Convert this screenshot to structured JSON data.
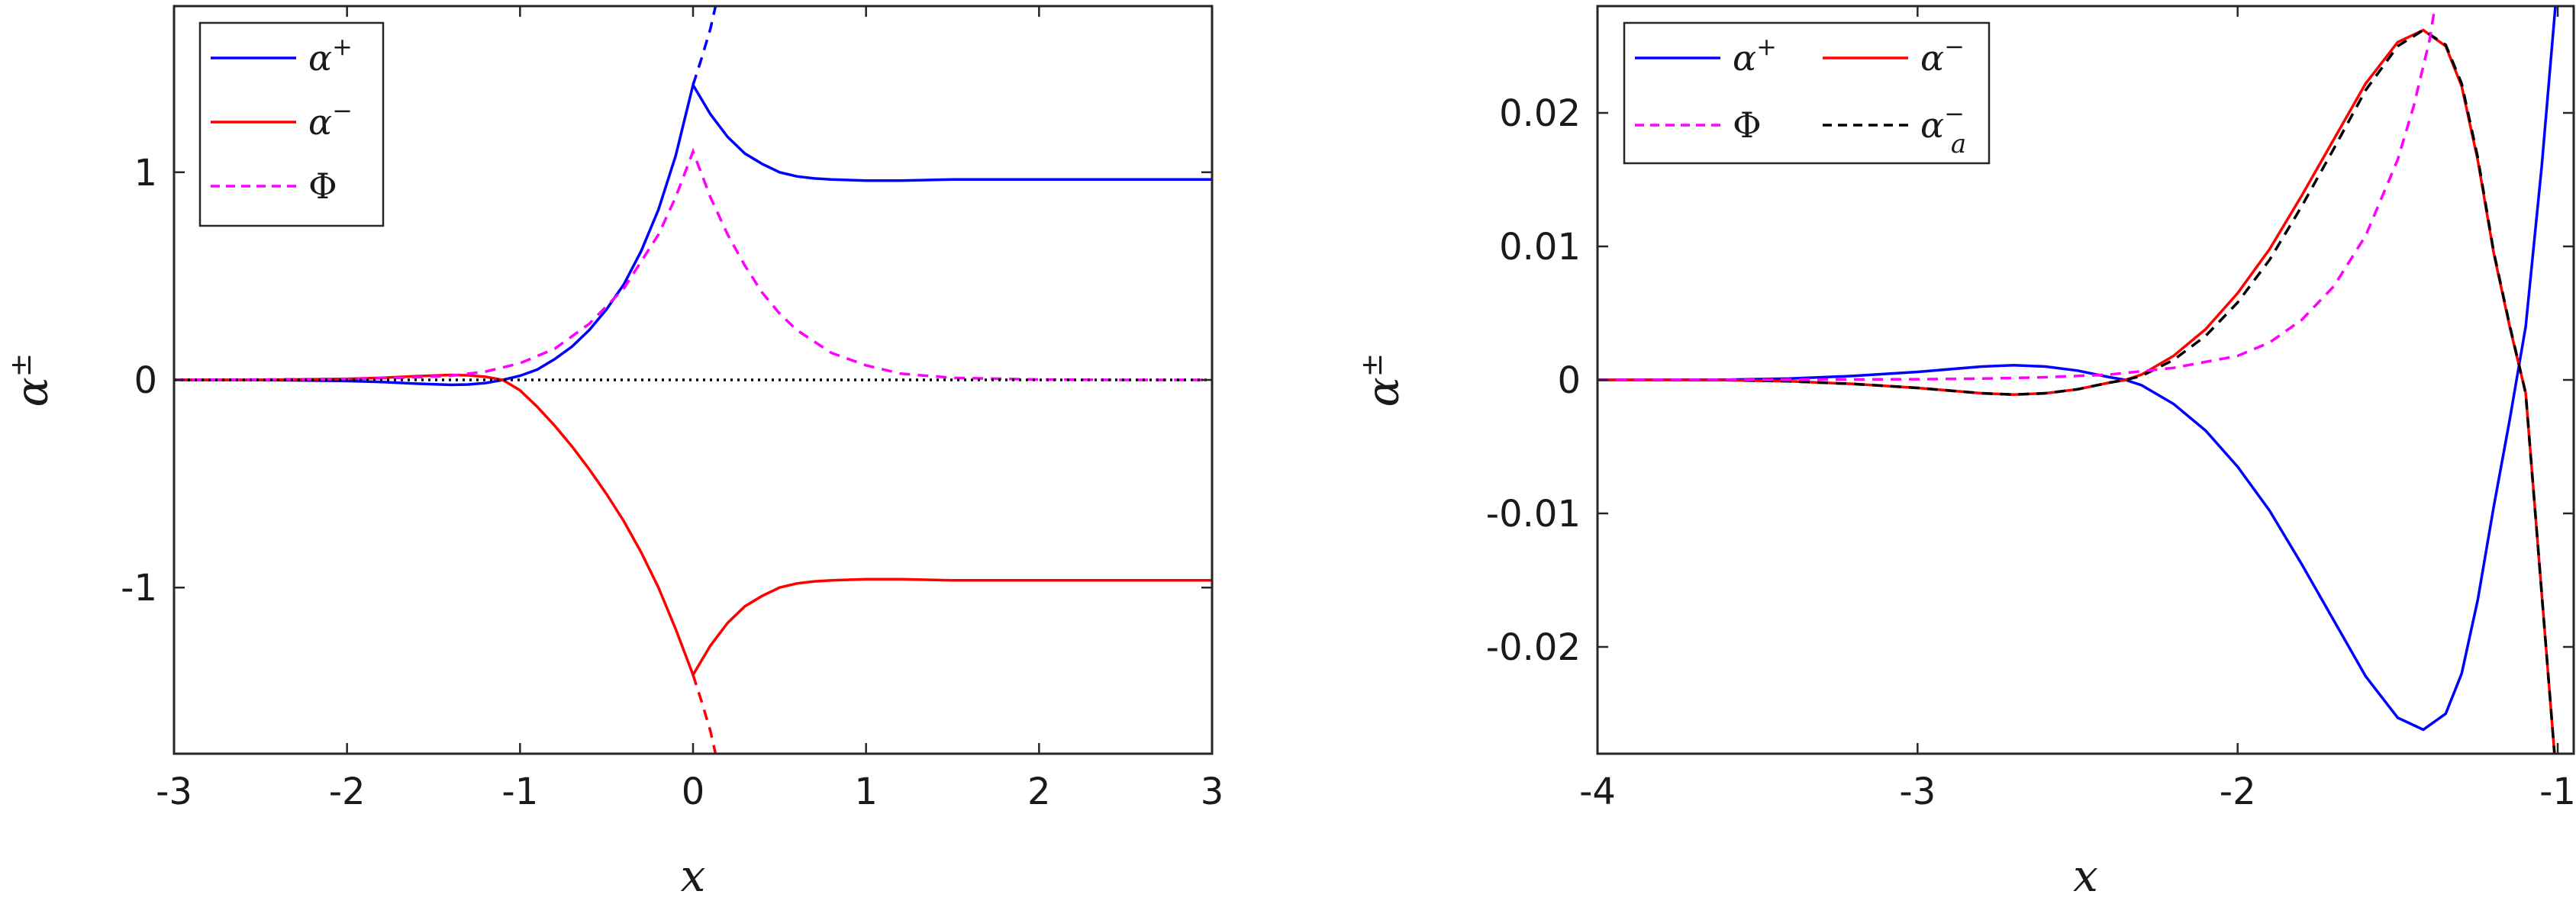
{
  "chart_data": [
    {
      "type": "line",
      "xlabel": "x",
      "ylabel": "α±",
      "xlim": [
        -3,
        3
      ],
      "ylim": [
        -1.8,
        1.8
      ],
      "xticks": [
        -3,
        -2,
        -1,
        0,
        1,
        2,
        3
      ],
      "xtick_labels": [
        "-3",
        "-2",
        "-1",
        "0",
        "1",
        "2",
        "3"
      ],
      "yticks": [
        -1,
        0,
        1
      ],
      "ytick_labels": [
        "-1",
        "0",
        "1"
      ],
      "legend": {
        "position": "top-left",
        "columns": 1,
        "entries": [
          "α+",
          "α−",
          "Φ"
        ]
      },
      "grid": false,
      "series": [
        {
          "name": "α+",
          "color": "#0000ff",
          "style": "solid",
          "x": [
            -3,
            -2.5,
            -2,
            -1.8,
            -1.6,
            -1.4,
            -1.3,
            -1.2,
            -1.1,
            -1.0,
            -0.9,
            -0.8,
            -0.7,
            -0.6,
            -0.5,
            -0.4,
            -0.3,
            -0.2,
            -0.1,
            0.0,
            0.1,
            0.2,
            0.3,
            0.4,
            0.5,
            0.6,
            0.7,
            0.8,
            1.0,
            1.2,
            1.5,
            2.0,
            2.5,
            3.0
          ],
          "y": [
            0,
            0,
            -0.005,
            -0.01,
            -0.018,
            -0.024,
            -0.022,
            -0.015,
            0.0,
            0.02,
            0.05,
            0.1,
            0.16,
            0.24,
            0.34,
            0.46,
            0.62,
            0.82,
            1.08,
            1.42,
            1.28,
            1.17,
            1.09,
            1.04,
            1.0,
            0.98,
            0.97,
            0.965,
            0.96,
            0.96,
            0.965,
            0.965,
            0.965,
            0.965
          ]
        },
        {
          "name": "α−",
          "color": "#ff0000",
          "style": "solid",
          "x": [
            -3,
            -2.5,
            -2,
            -1.8,
            -1.6,
            -1.4,
            -1.3,
            -1.2,
            -1.1,
            -1.0,
            -0.9,
            -0.8,
            -0.7,
            -0.6,
            -0.5,
            -0.4,
            -0.3,
            -0.2,
            -0.1,
            0.0,
            0.1,
            0.2,
            0.3,
            0.4,
            0.5,
            0.6,
            0.7,
            0.8,
            1.0,
            1.2,
            1.5,
            2.0,
            2.5,
            3.0
          ],
          "y": [
            0,
            0,
            0.005,
            0.01,
            0.018,
            0.024,
            0.022,
            0.015,
            0.0,
            -0.05,
            -0.13,
            -0.22,
            -0.32,
            -0.43,
            -0.55,
            -0.68,
            -0.83,
            -1.0,
            -1.2,
            -1.42,
            -1.28,
            -1.17,
            -1.09,
            -1.04,
            -1.0,
            -0.98,
            -0.97,
            -0.965,
            -0.96,
            -0.96,
            -0.965,
            -0.965,
            -0.965,
            -0.965
          ]
        },
        {
          "name": "Φ",
          "color": "#ff00ff",
          "style": "dashed",
          "x": [
            -3,
            -2.5,
            -2,
            -1.8,
            -1.6,
            -1.4,
            -1.2,
            -1.0,
            -0.8,
            -0.6,
            -0.4,
            -0.2,
            -0.1,
            0.0,
            0.1,
            0.2,
            0.3,
            0.4,
            0.5,
            0.6,
            0.8,
            1.0,
            1.2,
            1.5,
            2.0,
            2.5,
            3.0
          ],
          "y": [
            0,
            0.002,
            0.005,
            0.008,
            0.013,
            0.02,
            0.04,
            0.08,
            0.15,
            0.27,
            0.44,
            0.7,
            0.88,
            1.1,
            0.88,
            0.7,
            0.55,
            0.42,
            0.32,
            0.24,
            0.13,
            0.07,
            0.03,
            0.01,
            0.002,
            0.0,
            0.0
          ]
        },
        {
          "color": "#0000ff",
          "style": "dashed",
          "x": [
            0.0,
            0.05,
            0.1,
            0.13
          ],
          "y": [
            1.42,
            1.55,
            1.69,
            1.8
          ]
        },
        {
          "color": "#ff0000",
          "style": "dashed",
          "x": [
            0.0,
            0.05,
            0.1,
            0.13
          ],
          "y": [
            -1.42,
            -1.55,
            -1.69,
            -1.8
          ]
        },
        {
          "color": "#000000",
          "style": "dotted",
          "x": [
            -3,
            3
          ],
          "y": [
            0,
            0
          ]
        }
      ]
    },
    {
      "type": "line",
      "xlabel": "x",
      "ylabel": "α±",
      "xlim": [
        -4,
        -0.95
      ],
      "ylim": [
        -0.028,
        0.028
      ],
      "xticks": [
        -4,
        -3,
        -2,
        -1
      ],
      "xtick_labels": [
        "-4",
        "-3",
        "-2",
        "-1"
      ],
      "yticks": [
        -0.02,
        -0.01,
        0,
        0.01,
        0.02
      ],
      "ytick_labels": [
        "-0.02",
        "-0.01",
        "0",
        "0.01",
        "0.02"
      ],
      "legend": {
        "position": "top-left",
        "columns": 2,
        "entries": [
          "α+",
          "α−",
          "Φ",
          "α−a"
        ]
      },
      "grid": false,
      "series": [
        {
          "name": "α+",
          "color": "#0000ff",
          "style": "solid",
          "x": [
            -4,
            -3.6,
            -3.4,
            -3.2,
            -3.0,
            -2.8,
            -2.7,
            -2.6,
            -2.5,
            -2.4,
            -2.35,
            -2.3,
            -2.2,
            -2.1,
            -2.0,
            -1.9,
            -1.8,
            -1.7,
            -1.6,
            -1.5,
            -1.42,
            -1.35,
            -1.3,
            -1.25,
            -1.2,
            -1.15,
            -1.1,
            -1.05,
            -1.0
          ],
          "y": [
            0,
            2e-05,
            0.0001,
            0.0003,
            0.0006,
            0.001,
            0.0011,
            0.001,
            0.0007,
            0.0002,
            0.0,
            -0.0004,
            -0.0018,
            -0.0038,
            -0.0065,
            -0.0098,
            -0.0138,
            -0.018,
            -0.0222,
            -0.0253,
            -0.0262,
            -0.025,
            -0.022,
            -0.0165,
            -0.0095,
            -0.003,
            0.004,
            0.016,
            0.03
          ]
        },
        {
          "name": "α−",
          "color": "#ff0000",
          "style": "solid",
          "x": [
            -4,
            -3.6,
            -3.4,
            -3.2,
            -3.0,
            -2.8,
            -2.7,
            -2.6,
            -2.5,
            -2.4,
            -2.35,
            -2.3,
            -2.2,
            -2.1,
            -2.0,
            -1.9,
            -1.8,
            -1.7,
            -1.6,
            -1.5,
            -1.42,
            -1.35,
            -1.3,
            -1.25,
            -1.2,
            -1.15,
            -1.1,
            -1.05,
            -1.01
          ],
          "y": [
            0,
            -2e-05,
            -0.0001,
            -0.0003,
            -0.0006,
            -0.001,
            -0.0011,
            -0.001,
            -0.0007,
            -0.0002,
            0.0,
            0.0004,
            0.0018,
            0.0038,
            0.0065,
            0.0098,
            0.0138,
            0.018,
            0.0222,
            0.0253,
            0.0262,
            0.025,
            0.022,
            0.0165,
            0.0095,
            0.004,
            -0.001,
            -0.016,
            -0.028
          ]
        },
        {
          "name": "α−a",
          "color": "#000000",
          "style": "dashed",
          "x": [
            -4,
            -3.6,
            -3.4,
            -3.2,
            -3.0,
            -2.8,
            -2.7,
            -2.6,
            -2.5,
            -2.4,
            -2.35,
            -2.3,
            -2.2,
            -2.1,
            -2.0,
            -1.9,
            -1.8,
            -1.7,
            -1.6,
            -1.5,
            -1.42,
            -1.35,
            -1.3,
            -1.25,
            -1.2,
            -1.15,
            -1.1,
            -1.05,
            -1.01
          ],
          "y": [
            0,
            -2e-05,
            -0.0001,
            -0.0003,
            -0.0006,
            -0.001,
            -0.0011,
            -0.001,
            -0.0007,
            -0.0002,
            0.0,
            0.0003,
            0.0015,
            0.0033,
            0.0058,
            0.009,
            0.013,
            0.0173,
            0.0217,
            0.025,
            0.0262,
            0.0251,
            0.0222,
            0.0167,
            0.0096,
            0.0041,
            -0.001,
            -0.016,
            -0.028
          ]
        },
        {
          "name": "Φ",
          "color": "#ff00ff",
          "style": "dashed",
          "x": [
            -4,
            -3.5,
            -3.0,
            -2.8,
            -2.6,
            -2.4,
            -2.2,
            -2.0,
            -1.9,
            -1.8,
            -1.7,
            -1.6,
            -1.5,
            -1.45,
            -1.4,
            -1.38
          ],
          "y": [
            0,
            1e-05,
            5e-05,
            0.0001,
            0.0002,
            0.0004,
            0.0009,
            0.0018,
            0.0028,
            0.0045,
            0.007,
            0.0108,
            0.0165,
            0.0205,
            0.0255,
            0.0285
          ]
        }
      ]
    }
  ]
}
